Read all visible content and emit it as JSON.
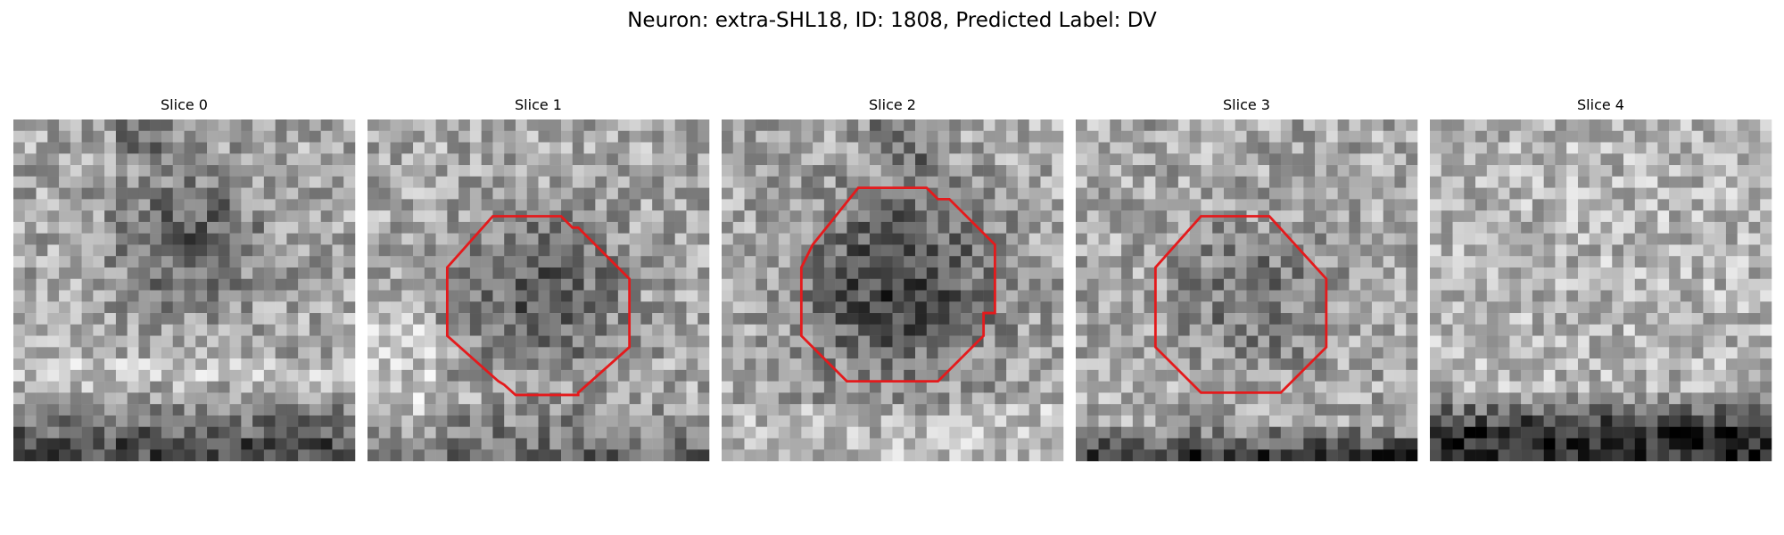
{
  "figure": {
    "title": "Neuron: extra-SHL18, ID: 1808, Predicted Label: DV"
  },
  "panels": [
    {
      "title": "Slice 0",
      "has_roi": false,
      "pattern": "blob_top",
      "seed": 11
    },
    {
      "title": "Slice 1",
      "has_roi": true,
      "pattern": "blob_bright_band",
      "seed": 23
    },
    {
      "title": "Slice 2",
      "has_roi": true,
      "pattern": "blob_large",
      "seed": 37
    },
    {
      "title": "Slice 3",
      "has_roi": true,
      "pattern": "blob_faint",
      "seed": 41
    },
    {
      "title": "Slice 4",
      "has_roi": false,
      "pattern": "dark_bottom",
      "seed": 53
    }
  ],
  "colors": {
    "roi_outline": "#e41a1c",
    "background": "#ffffff"
  }
}
